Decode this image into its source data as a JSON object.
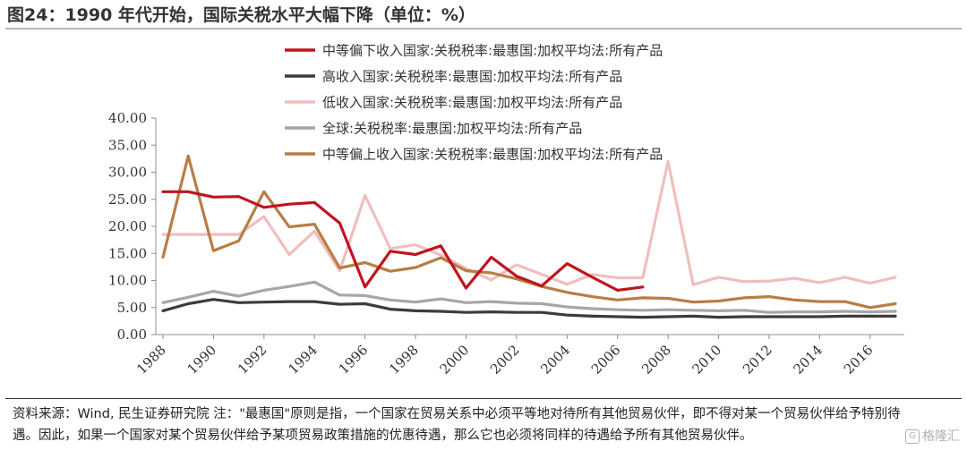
{
  "title": "图24：1990 年代开始，国际关税水平大幅下降（单位：%）",
  "note": "资料来源：Wind, 民生证券研究院   注：\"最惠国\"原则是指，一个国家在贸易关系中必须平等地对待所有其他贸易伙伴，即不得对某一个贸易伙伴给予特别待遇。因此，如果一个国家对某个贸易伙伴给予某项贸易政策措施的优惠待遇，那么它也必须将同样的待遇给予所有其他贸易伙伴。",
  "watermark": "格隆汇",
  "chart_data": {
    "type": "line",
    "title": "",
    "xlabel": "",
    "ylabel": "",
    "ylim": [
      0,
      40
    ],
    "xlim": [
      1988,
      2017
    ],
    "y_ticks": [
      "0.00",
      "5.00",
      "10.00",
      "15.00",
      "20.00",
      "25.00",
      "30.00",
      "35.00",
      "40.00"
    ],
    "x_ticks": [
      "1988",
      "1990",
      "1992",
      "1994",
      "1996",
      "1998",
      "2000",
      "2002",
      "2004",
      "2006",
      "2008",
      "2010",
      "2012",
      "2014",
      "2016"
    ],
    "grid": false,
    "legend_position": "top-right",
    "series": [
      {
        "name": "中等偏下收入国家:关税税率:最惠国:加权平均法:所有产品",
        "color": "#c0141e",
        "x": [
          1988,
          1989,
          1990,
          1991,
          1992,
          1993,
          1994,
          1995,
          1996,
          1997,
          1998,
          1999,
          2000,
          2001,
          2002,
          2003,
          2004,
          2005,
          2006,
          2007
        ],
        "y": [
          26.4,
          26.4,
          25.4,
          25.5,
          23.5,
          24.1,
          24.4,
          20.6,
          8.8,
          15.4,
          14.8,
          16.4,
          8.6,
          14.3,
          10.8,
          9.0,
          13.1,
          10.6,
          8.2,
          8.8
        ]
      },
      {
        "name": "高收入国家:关税税率:最惠国:加权平均法:所有产品",
        "color": "#3c3c3c",
        "x": [
          1988,
          1989,
          1990,
          1991,
          1992,
          1993,
          1994,
          1995,
          1996,
          1997,
          1998,
          1999,
          2000,
          2001,
          2002,
          2003,
          2004,
          2005,
          2006,
          2007,
          2008,
          2009,
          2010,
          2011,
          2012,
          2013,
          2014,
          2015,
          2016,
          2017
        ],
        "y": [
          4.4,
          5.7,
          6.5,
          5.9,
          6.0,
          6.1,
          6.1,
          5.6,
          5.7,
          4.7,
          4.4,
          4.3,
          4.1,
          4.2,
          4.1,
          4.1,
          3.6,
          3.4,
          3.3,
          3.2,
          3.3,
          3.4,
          3.2,
          3.3,
          3.3,
          3.3,
          3.3,
          3.4,
          3.4,
          3.4
        ]
      },
      {
        "name": "低收入国家:关税税率:最惠国:加权平均法:所有产品",
        "color": "#f0bec0",
        "x": [
          1988,
          1989,
          1990,
          1991,
          1992,
          1993,
          1994,
          1995,
          1996,
          1997,
          1998,
          1999,
          2000,
          2001,
          2002,
          2003,
          2004,
          2005,
          2006,
          2007,
          2008,
          2009,
          2010,
          2011,
          2012,
          2013,
          2014,
          2015,
          2016,
          2017
        ],
        "y": [
          18.5,
          18.5,
          18.5,
          18.5,
          21.8,
          14.8,
          19.1,
          11.8,
          25.7,
          15.9,
          16.6,
          14.7,
          12.2,
          10.1,
          12.9,
          11.1,
          9.3,
          11.1,
          10.5,
          10.5,
          32.0,
          9.2,
          10.6,
          9.8,
          9.9,
          10.4,
          9.6,
          10.6,
          9.5,
          10.6
        ]
      },
      {
        "name": "全球:关税税率:最惠国:加权平均法:所有产品",
        "color": "#a6a6a6",
        "x": [
          1988,
          1989,
          1990,
          1991,
          1992,
          1993,
          1994,
          1995,
          1996,
          1997,
          1998,
          1999,
          2000,
          2001,
          2002,
          2003,
          2004,
          2005,
          2006,
          2007,
          2008,
          2009,
          2010,
          2011,
          2012,
          2013,
          2014,
          2015,
          2016,
          2017
        ],
        "y": [
          5.9,
          6.9,
          8.0,
          7.1,
          8.2,
          8.9,
          9.7,
          7.3,
          7.2,
          6.4,
          6.0,
          6.6,
          5.9,
          6.1,
          5.8,
          5.7,
          5.1,
          4.8,
          4.6,
          4.5,
          4.6,
          4.5,
          4.4,
          4.5,
          4.1,
          4.2,
          4.2,
          4.3,
          4.2,
          4.3
        ]
      },
      {
        "name": "中等偏上收入国家:关税税率:最惠国:加权平均法:所有产品",
        "color": "#b87d45",
        "x": [
          1988,
          1989,
          1990,
          1991,
          1992,
          1993,
          1994,
          1995,
          1996,
          1997,
          1998,
          1999,
          2000,
          2001,
          2002,
          2003,
          2004,
          2005,
          2006,
          2007,
          2008,
          2009,
          2010,
          2011,
          2012,
          2013,
          2014,
          2015,
          2016,
          2017
        ],
        "y": [
          14.3,
          33.0,
          15.5,
          17.3,
          26.4,
          19.9,
          20.4,
          12.3,
          13.3,
          11.7,
          12.4,
          14.2,
          11.8,
          11.4,
          10.3,
          8.9,
          7.8,
          7.0,
          6.4,
          6.8,
          6.7,
          6.0,
          6.2,
          6.8,
          7.0,
          6.4,
          6.1,
          6.1,
          5.0,
          5.7
        ]
      }
    ]
  }
}
